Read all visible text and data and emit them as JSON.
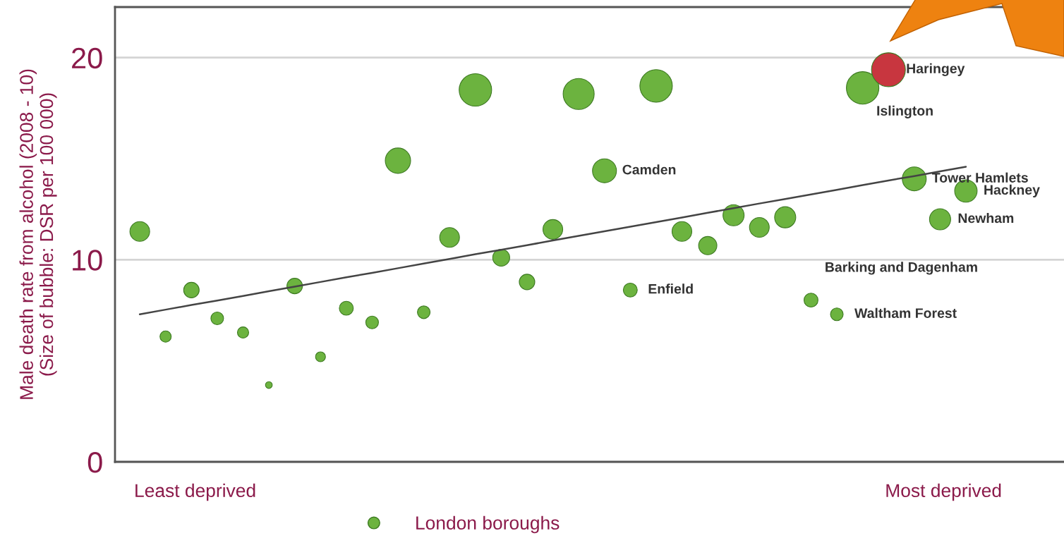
{
  "chart_data": {
    "type": "bubble",
    "ylabel": "Male death rate from alcohol (2008 - 10)\n(Size of bubble: DSR per 100 000)",
    "categories": [
      null,
      null,
      null,
      null,
      null,
      null,
      null,
      null,
      null,
      null,
      null,
      null,
      null,
      null,
      null,
      null,
      null,
      null,
      null,
      null,
      null,
      null,
      null,
      null,
      null,
      null,
      null,
      null,
      null,
      null,
      null,
      null,
      null
    ],
    "series": [
      {
        "name": "London boroughs",
        "type": "bubble",
        "color": "#6cb33f",
        "colors": [
          "#6cb33f",
          "#6cb33f",
          "#6cb33f",
          "#6cb33f",
          "#6cb33f",
          "#6cb33f",
          "#6cb33f",
          "#6cb33f",
          "#6cb33f",
          "#6cb33f",
          "#6cb33f",
          "#6cb33f",
          "#6cb33f",
          "#6cb33f",
          "#6cb33f",
          "#6cb33f",
          "#6cb33f",
          "#6cb33f",
          "#6cb33f",
          "#6cb33f",
          "#6cb33f",
          "#6cb33f",
          "#6cb33f",
          "#6cb33f",
          "#6cb33f",
          "#6cb33f",
          "#6cb33f",
          "#6cb33f",
          "#6cb33f",
          "#c8363f",
          "#6cb33f",
          "#6cb33f",
          "#6cb33f"
        ],
        "values": [
          11.4,
          6.2,
          8.5,
          7.1,
          6.4,
          3.8,
          8.7,
          5.2,
          7.6,
          6.9,
          14.9,
          7.4,
          11.1,
          18.4,
          10.1,
          8.9,
          11.5,
          18.2,
          14.4,
          8.5,
          18.6,
          11.4,
          10.7,
          12.2,
          11.6,
          12.1,
          8.0,
          7.3,
          18.5,
          19.4,
          14.0,
          12.0,
          13.4
        ],
        "sizes": [
          0.34,
          0.11,
          0.21,
          0.14,
          0.11,
          0.04,
          0.21,
          0.085,
          0.17,
          0.14,
          0.56,
          0.14,
          0.34,
          0.92,
          0.25,
          0.21,
          0.34,
          0.84,
          0.5,
          0.17,
          0.92,
          0.34,
          0.29,
          0.39,
          0.34,
          0.39,
          0.17,
          0.14,
          0.92,
          1,
          0.5,
          0.39,
          0.44
        ],
        "value_labels": [
          null,
          null,
          null,
          null,
          null,
          null,
          null,
          null,
          null,
          null,
          null,
          null,
          null,
          null,
          null,
          null,
          null,
          null,
          "Camden",
          "Enfield",
          null,
          null,
          null,
          null,
          null,
          null,
          "Barking and Dagenham",
          "Waltham Forest",
          "Islington",
          "Haringey",
          "Tower Hamlets",
          "Newham",
          "Hackney"
        ]
      },
      {
        "type": "line",
        "color": "#444444",
        "values": [
          7.3,
          7.53,
          7.76,
          7.98,
          8.21,
          8.44,
          8.67,
          8.9,
          9.13,
          9.35,
          9.58,
          9.81,
          10.04,
          10.27,
          10.49,
          10.72,
          10.95,
          11.18,
          11.41,
          11.63,
          11.86,
          12.09,
          12.32,
          12.55,
          12.78,
          13.0,
          13.23,
          13.46,
          13.69,
          13.92,
          14.14,
          14.37,
          14.6
        ]
      }
    ],
    "ylim": [
      0,
      22.5
    ],
    "yticks": [
      0,
      10,
      20
    ],
    "grid": "y",
    "legend": "bottom",
    "annotations": [
      "Least deprived",
      "Most deprived"
    ]
  }
}
